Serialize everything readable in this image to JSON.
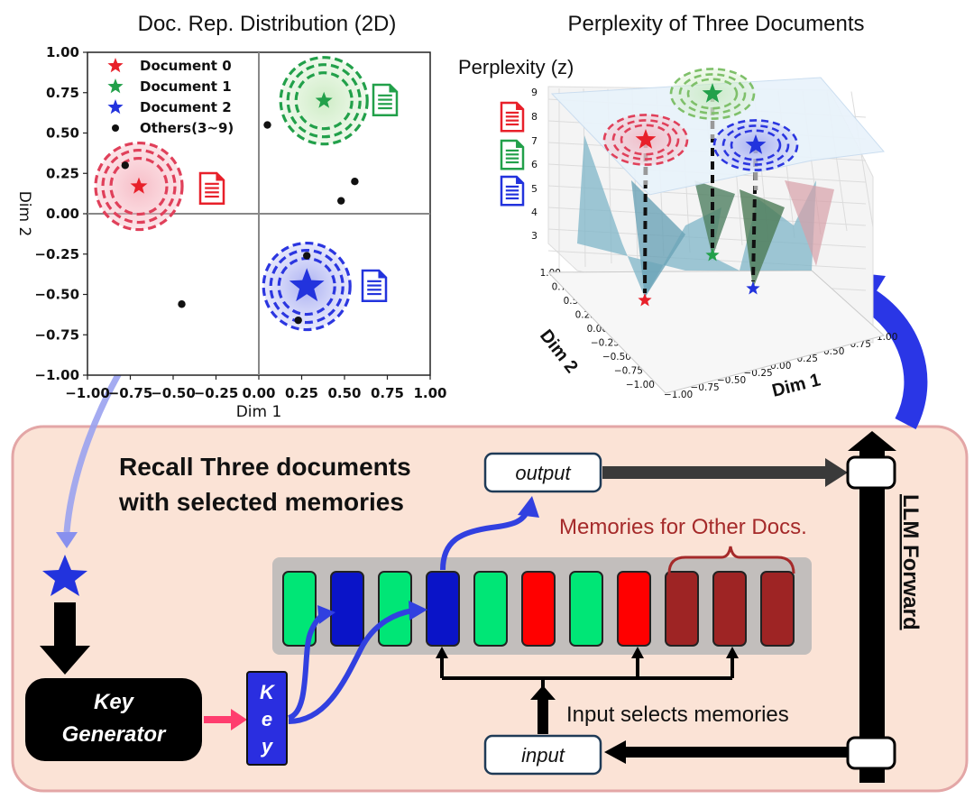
{
  "scatter": {
    "title": "Doc. Rep. Distribution (2D)",
    "xlabel": "Dim 1",
    "ylabel": "Dim 2",
    "ticks": [
      "−1.00",
      "−0.75",
      "−0.50",
      "−0.25",
      "0.00",
      "0.25",
      "0.50",
      "0.75",
      "1.00"
    ],
    "legend": [
      "Document 0",
      "Document 1",
      "Document 2",
      "Others(3~9)"
    ]
  },
  "surface": {
    "title": "Perplexity of Three Documents",
    "zlabel": "Perplexity (z)",
    "xlabel": "Dim 1",
    "ylabel": "Dim 2",
    "zticks": [
      "9",
      "8",
      "7",
      "6",
      "5",
      "4",
      "3"
    ],
    "yticks": [
      "1.00",
      "0.75",
      "0.50",
      "0.25",
      "0.00",
      "−0.25",
      "−0.50",
      "−0.75",
      "−1.00"
    ],
    "xticks": [
      "−1.00",
      "−0.75",
      "−0.50",
      "−0.25",
      "0.00",
      "0.25",
      "0.50",
      "0.75",
      "1.00"
    ]
  },
  "diagram": {
    "heading_line1": "Recall Three documents",
    "heading_line2": "with selected memories",
    "output_label": "output",
    "input_label": "input",
    "other_memories_label": "Memories for Other Docs.",
    "input_selects_label": "Input selects memories",
    "llm_forward_label": "LLM Forward",
    "key_generator_line1": "Key",
    "key_generator_line2": "Generator",
    "key_letters": [
      "K",
      "e",
      "y"
    ]
  },
  "colors": {
    "doc0": "#e8202a",
    "doc1": "#22a04a",
    "doc2": "#2233dd",
    "panel_bg": "#fbe3d6",
    "panel_border": "#e3a6a6",
    "mem_green": "#00e676",
    "mem_blue": "#0a14c8",
    "mem_red": "#ff0000",
    "mem_darkred": "#9e2424",
    "other_text": "#a52a2a"
  },
  "chart_data": [
    {
      "type": "scatter",
      "title": "Doc. Rep. Distribution (2D)",
      "xlabel": "Dim 1",
      "ylabel": "Dim 2",
      "xlim": [
        -1.0,
        1.0
      ],
      "ylim": [
        -1.0,
        1.0
      ],
      "grid": false,
      "legend_position": "top-left",
      "series": [
        {
          "name": "Document 0",
          "x": [
            -0.7
          ],
          "y": [
            0.17
          ]
        },
        {
          "name": "Document 1",
          "x": [
            0.38
          ],
          "y": [
            0.7
          ]
        },
        {
          "name": "Document 2",
          "x": [
            0.28
          ],
          "y": [
            -0.45
          ]
        },
        {
          "name": "Others(3~9)",
          "x": [
            -0.78,
            0.05,
            0.56,
            0.48,
            0.28,
            -0.45,
            0.23
          ],
          "y": [
            0.3,
            0.55,
            0.2,
            0.08,
            -0.26,
            -0.56,
            -0.66
          ]
        }
      ]
    },
    {
      "type": "surface",
      "title": "Perplexity of Three Documents",
      "xlabel": "Dim 1",
      "ylabel": "Dim 2",
      "zlabel": "Perplexity (z)",
      "zlim": [
        3,
        9
      ],
      "xlim": [
        -1.0,
        1.0
      ],
      "ylim": [
        -1.0,
        1.0
      ]
    }
  ]
}
